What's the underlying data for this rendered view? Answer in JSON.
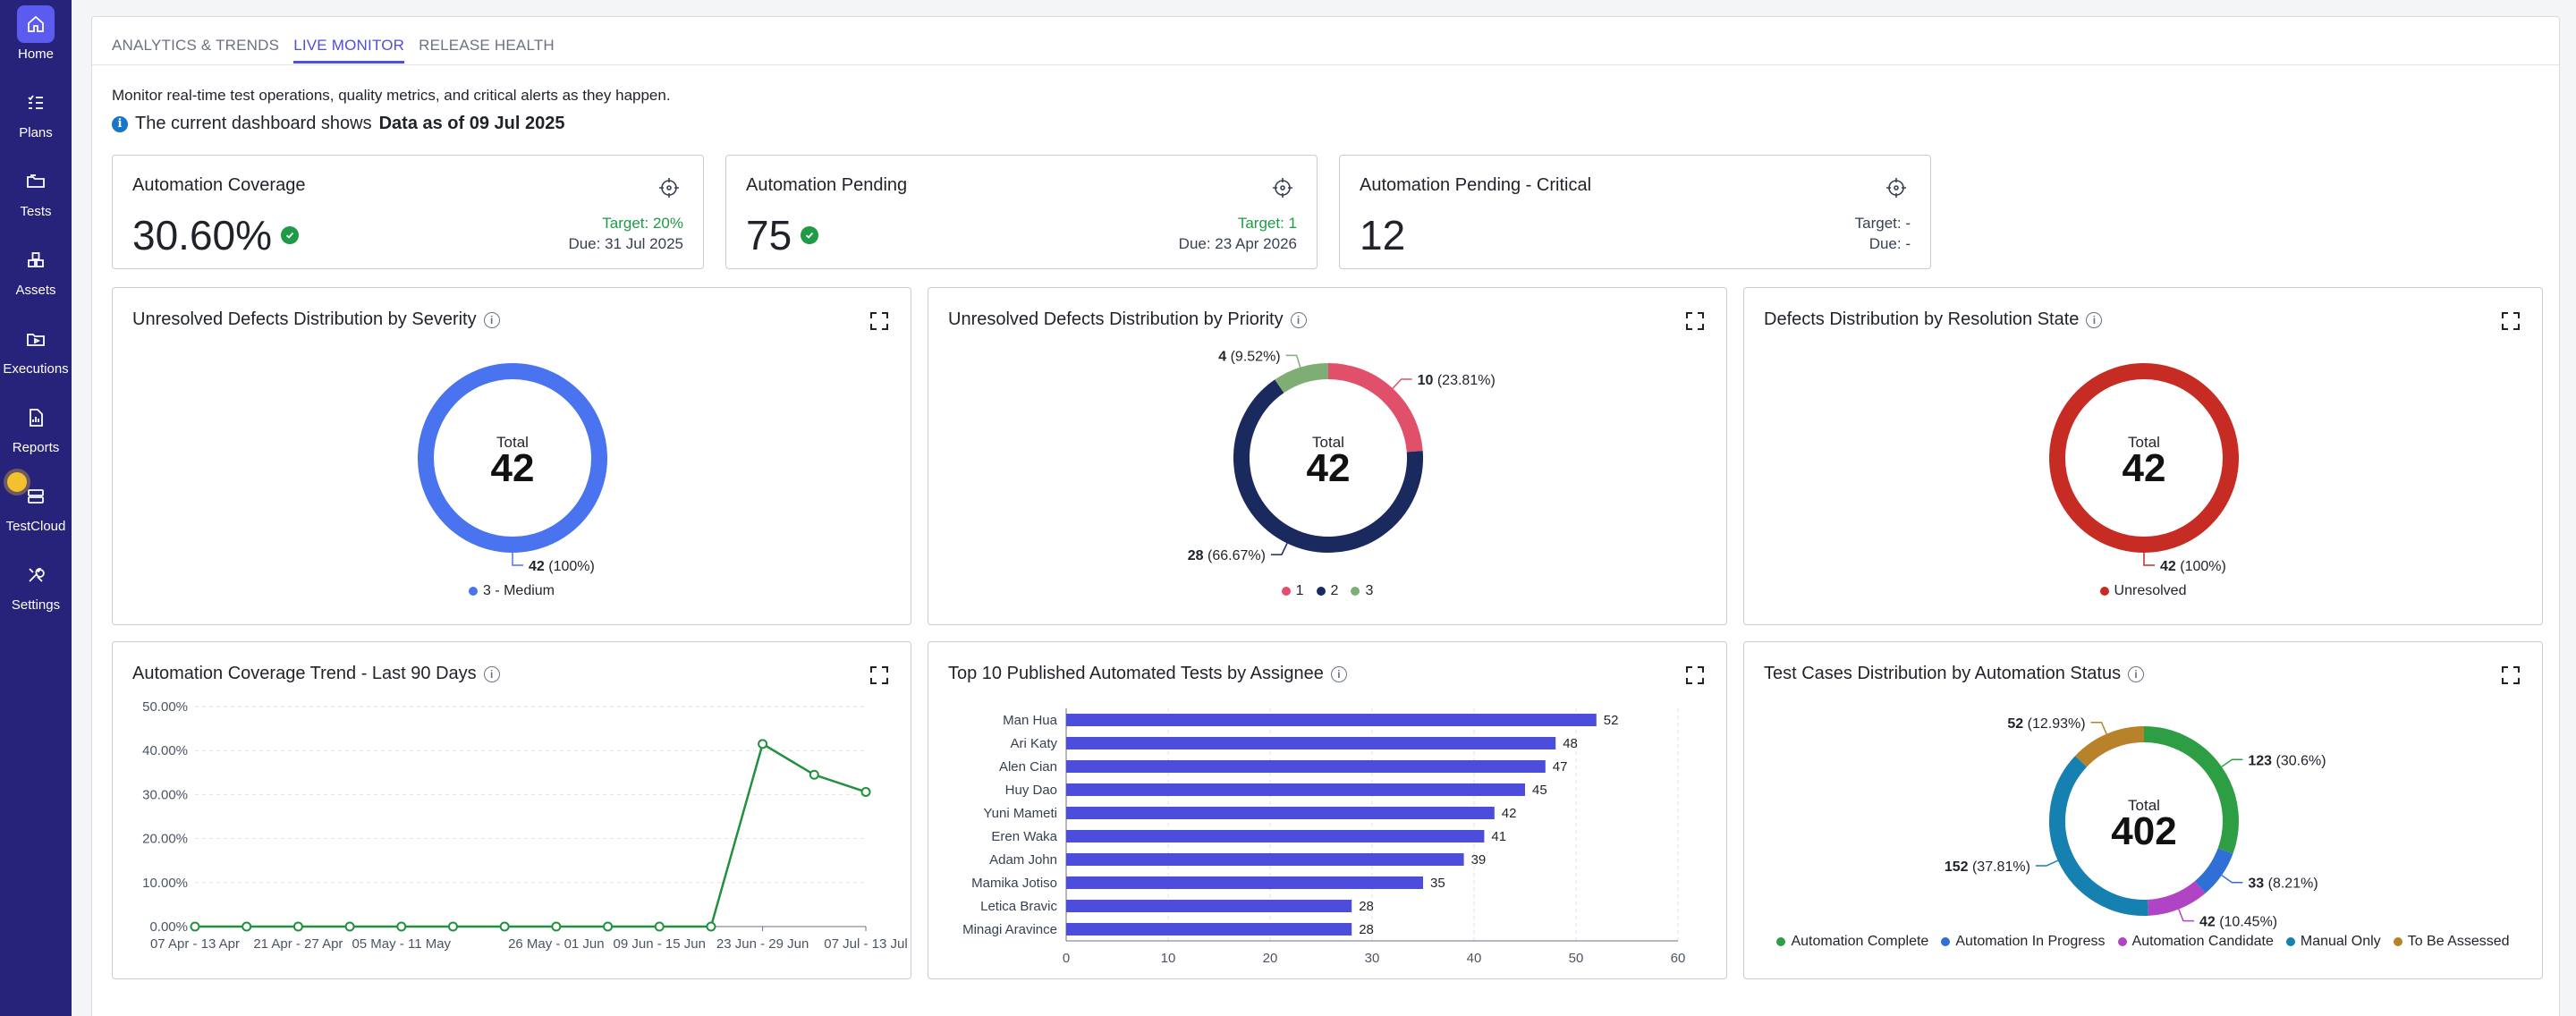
{
  "sidebar": {
    "items": [
      {
        "label": "Home",
        "icon": "home-icon"
      },
      {
        "label": "Plans",
        "icon": "plans-icon"
      },
      {
        "label": "Tests",
        "icon": "tests-icon"
      },
      {
        "label": "Assets",
        "icon": "assets-icon"
      },
      {
        "label": "Executions",
        "icon": "executions-icon"
      },
      {
        "label": "Reports",
        "icon": "reports-icon"
      },
      {
        "label": "TestCloud",
        "icon": "testcloud-icon"
      },
      {
        "label": "Settings",
        "icon": "settings-icon"
      }
    ]
  },
  "tabs": [
    {
      "label": "ANALYTICS & TRENDS"
    },
    {
      "label": "LIVE MONITOR"
    },
    {
      "label": "RELEASE HEALTH"
    }
  ],
  "intro": "Monitor real-time test operations, quality metrics, and critical alerts as they happen.",
  "as_of": {
    "prefix": "The current dashboard shows",
    "bold": "Data as of 09 Jul 2025"
  },
  "kpis": [
    {
      "title": "Automation Coverage",
      "value": "30.60%",
      "ok": true,
      "target": "Target: 20%",
      "due": "Due: 31 Jul 2025",
      "target_color": "#1f9a46"
    },
    {
      "title": "Automation Pending",
      "value": "75",
      "ok": true,
      "target": "Target: 1",
      "due": "Due: 23 Apr 2026",
      "target_color": "#1f9a46"
    },
    {
      "title": "Automation Pending - Critical",
      "value": "12",
      "ok": false,
      "target": "Target: -",
      "due": "Due: -",
      "target_color": "#374151"
    }
  ],
  "colors": {
    "severity_medium": "#4a73f0",
    "priority_1": "#e0506a",
    "priority_2": "#1b2a5e",
    "priority_3": "#7fae75",
    "unresolved": "#c72c24",
    "trend_line": "#21913d",
    "bar": "#4d4ddb",
    "status_complete": "#2e9e45",
    "status_in_progress": "#2f6fd6",
    "status_candidate": "#b044c4",
    "status_manual": "#1680b0",
    "status_assess": "#b8822b"
  },
  "chart_data": [
    {
      "id": "severity",
      "type": "pie",
      "title": "Unresolved Defects Distribution by Severity",
      "center_label": "Total",
      "center_value": "42",
      "slices": [
        {
          "label": "3 - Medium",
          "value": 42,
          "pct": "(100%)",
          "color": "#4a73f0"
        }
      ]
    },
    {
      "id": "priority",
      "type": "pie",
      "title": "Unresolved Defects Distribution by Priority",
      "center_label": "Total",
      "center_value": "42",
      "slices": [
        {
          "label": "1",
          "value": 10,
          "pct": "(23.81%)",
          "color": "#e0506a"
        },
        {
          "label": "2",
          "value": 28,
          "pct": "(66.67%)",
          "color": "#1b2a5e"
        },
        {
          "label": "3",
          "value": 4,
          "pct": "(9.52%)",
          "color": "#7fae75"
        }
      ]
    },
    {
      "id": "resolution",
      "type": "pie",
      "title": "Defects Distribution by Resolution State",
      "center_label": "Total",
      "center_value": "42",
      "slices": [
        {
          "label": "Unresolved",
          "value": 42,
          "pct": "(100%)",
          "color": "#c72c24"
        }
      ]
    },
    {
      "id": "trend",
      "type": "line",
      "title": "Automation Coverage Trend - Last 90 Days",
      "categories": [
        "07 Apr - 13 Apr",
        "21 Apr - 27 Apr",
        "05 May - 11 May",
        "26 May - 01 Jun",
        "09 Jun - 15 Jun",
        "23 Jun - 29 Jun",
        "07 Jul - 13 Jul"
      ],
      "tick_labels": [
        "07 Apr - 13 Apr",
        "21 Apr - 27 Apr",
        "05 May - 11 May",
        "26 May - 01 Jun",
        "09 Jun - 15 Jun",
        "23 Jun - 29 Jun",
        "07 Jul - 13 Jul"
      ],
      "x": [
        0,
        1,
        2,
        3,
        4,
        5,
        6,
        7,
        8,
        9,
        10,
        11,
        12,
        13
      ],
      "values": [
        0,
        0,
        0,
        0,
        0,
        0,
        0,
        0,
        0,
        0,
        0,
        41.5,
        34.5,
        30.6
      ],
      "y_ticks": [
        "0.00%",
        "10.00%",
        "20.00%",
        "30.00%",
        "40.00%",
        "50.00%"
      ],
      "ylim": [
        0,
        50
      ]
    },
    {
      "id": "assignee",
      "type": "bar",
      "orientation": "horizontal",
      "title": "Top 10 Published Automated Tests by Assignee",
      "categories": [
        "Man Hua",
        "Ari Katy",
        "Alen Cian",
        "Huy Dao",
        "Yuni Mameti",
        "Eren Waka",
        "Adam John",
        "Mamika Jotiso",
        "Letica Bravic",
        "Minagi Aravince"
      ],
      "values": [
        52,
        48,
        47,
        45,
        42,
        41,
        39,
        35,
        28,
        28
      ],
      "x_ticks": [
        "0",
        "10",
        "20",
        "30",
        "40",
        "50",
        "60"
      ],
      "xlim": [
        0,
        60
      ]
    },
    {
      "id": "automation_status",
      "type": "pie",
      "title": "Test Cases Distribution by Automation Status",
      "center_label": "Total",
      "center_value": "402",
      "slices": [
        {
          "label": "Automation Complete",
          "value": 123,
          "pct": "(30.6%)",
          "color": "#2e9e45"
        },
        {
          "label": "Automation In Progress",
          "value": 33,
          "pct": "(8.21%)",
          "color": "#2f6fd6"
        },
        {
          "label": "Automation Candidate",
          "value": 42,
          "pct": "(10.45%)",
          "color": "#b044c4"
        },
        {
          "label": "Manual Only",
          "value": 152,
          "pct": "(37.81%)",
          "color": "#1680b0"
        },
        {
          "label": "To Be Assessed",
          "value": 52,
          "pct": "(12.93%)",
          "color": "#b8822b"
        }
      ]
    }
  ]
}
